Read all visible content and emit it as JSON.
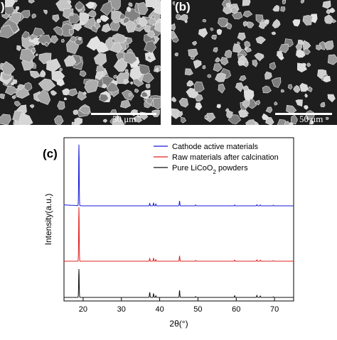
{
  "panel_a": {
    "label": ")",
    "scale_label": "50 μm"
  },
  "panel_b": {
    "label": "(b)",
    "scale_label": "50 μm"
  },
  "chart_data": {
    "panel_label": "(c)",
    "type": "line",
    "xlabel": "2θ(°)",
    "ylabel": "Intensity(a.u.)",
    "xlim": [
      15,
      75
    ],
    "x_ticks": [
      20,
      30,
      40,
      50,
      60,
      70
    ],
    "y_ticks": [],
    "grid": false,
    "legend_position": "top-right",
    "peaks_x": [
      18.9,
      37.4,
      38.4,
      39.0,
      45.2,
      49.4,
      59.6,
      65.4,
      66.3,
      69.7
    ],
    "series": [
      {
        "name": "Cathode active materials",
        "color": "#1a1adb",
        "peak_heights": [
          100,
          4,
          5,
          3,
          8,
          1.5,
          1.5,
          2,
          1.5,
          1
        ]
      },
      {
        "name": "Raw materials after calcination",
        "color": "#e02020",
        "peak_heights": [
          100,
          5,
          6,
          3,
          10,
          1.5,
          2,
          2.5,
          2,
          1
        ]
      },
      {
        "name": "Pure LiCoO2 powders",
        "color": "#111111",
        "peak_heights": [
          100,
          18,
          14,
          6,
          25,
          3,
          6,
          7,
          5,
          2
        ]
      }
    ]
  }
}
